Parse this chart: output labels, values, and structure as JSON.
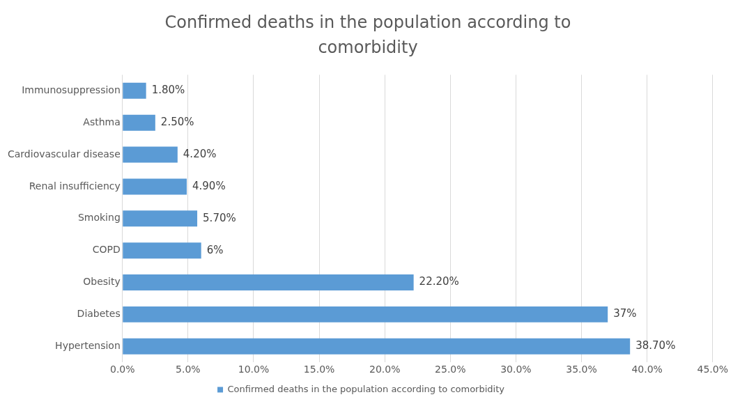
{
  "chart_data": {
    "type": "bar",
    "orientation": "horizontal",
    "title": "Confirmed deaths in the population according to comorbidity",
    "categories": [
      "Immunosuppression",
      "Asthma",
      "Cardiovascular disease",
      "Renal insufficiency",
      "Smoking",
      "COPD",
      "Obesity",
      "Diabetes",
      "Hypertension"
    ],
    "series": [
      {
        "name": "Confirmed deaths in the population according to comorbidity",
        "color": "#5b9bd5",
        "values": [
          1.8,
          2.5,
          4.2,
          4.9,
          5.7,
          6,
          22.2,
          37,
          38.7
        ],
        "value_labels": [
          "1.80%",
          "2.50%",
          "4.20%",
          "4.90%",
          "5.70%",
          "6%",
          "22.20%",
          "37%",
          "38.70%"
        ]
      }
    ],
    "xlim": [
      0,
      45
    ],
    "xticks": [
      {
        "value": 0,
        "label": "0.0%"
      },
      {
        "value": 5,
        "label": "5.0%"
      },
      {
        "value": 10,
        "label": "10.0%"
      },
      {
        "value": 15,
        "label": "15.0%"
      },
      {
        "value": 20,
        "label": "20.0%"
      },
      {
        "value": 25,
        "label": "25.0%"
      },
      {
        "value": 30,
        "label": "30.0%"
      },
      {
        "value": 35,
        "label": "35.0%"
      },
      {
        "value": 40,
        "label": "40.0%"
      },
      {
        "value": 45,
        "label": "45.0%"
      }
    ],
    "grid": "x",
    "legend": "bottom"
  }
}
